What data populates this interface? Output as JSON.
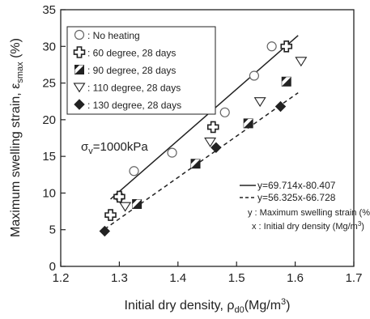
{
  "chart_data": {
    "type": "scatter",
    "xlabel": "Initial dry density, ρ",
    "xlabel_sub": "d0",
    "xlabel_unit": "(Mg/m",
    "xlabel_unit_sup": "3",
    "xlabel_unit_end": ")",
    "ylabel": "Maximum swelling strain, ε",
    "ylabel_sub": "smax",
    "ylabel_unit": " (%)",
    "xlim": [
      1.2,
      1.7
    ],
    "ylim": [
      0,
      35
    ],
    "xticks": [
      "1.2",
      "1.3",
      "1.4",
      "1.5",
      "1.6",
      "1.7"
    ],
    "yticks": [
      "0",
      "5",
      "10",
      "15",
      "20",
      "25",
      "30",
      "35"
    ],
    "legend_position": "top-left",
    "series": [
      {
        "name": ": No heating",
        "marker": "open-circle",
        "x": [
          1.3,
          1.325,
          1.39,
          1.48,
          1.53,
          1.56
        ],
        "y": [
          9.5,
          13.0,
          15.5,
          21.0,
          26.0,
          30.0
        ]
      },
      {
        "name": ": 60 degree, 28 days",
        "marker": "open-cross",
        "x": [
          1.285,
          1.3,
          1.46,
          1.585
        ],
        "y": [
          7.0,
          9.5,
          19.0,
          30.0
        ]
      },
      {
        "name": ": 90 degree, 28 days",
        "marker": "half-square",
        "x": [
          1.33,
          1.43,
          1.52,
          1.585
        ],
        "y": [
          8.5,
          14.0,
          19.5,
          25.2
        ]
      },
      {
        "name": ": 110 degree, 28 days",
        "marker": "open-triangle-down",
        "x": [
          1.31,
          1.455,
          1.54,
          1.61
        ],
        "y": [
          8.2,
          17.0,
          22.5,
          28.0
        ]
      },
      {
        "name": ": 130 degree, 28 days",
        "marker": "half-diamond",
        "x": [
          1.275,
          1.465,
          1.575
        ],
        "y": [
          4.8,
          16.2,
          21.8
        ]
      }
    ],
    "fit_lines": [
      {
        "label": "y=69.714x-80.407",
        "style": "solid",
        "slope": 69.714,
        "intercept": -80.407,
        "x_range": [
          1.285,
          1.605
        ]
      },
      {
        "label": "y=56.325x-66.728",
        "style": "dashed",
        "slope": 56.325,
        "intercept": -66.728,
        "x_range": [
          1.275,
          1.605
        ]
      }
    ],
    "annotations": {
      "stress_symbol": "σ",
      "stress_sub": "v",
      "stress_value": "=1000kPa",
      "note_y": "y : Maximum swelling strain (%)",
      "note_x_prefix": "x : Initial dry density (Mg/m",
      "note_x_sup": "3",
      "note_x_suffix": ")"
    }
  }
}
